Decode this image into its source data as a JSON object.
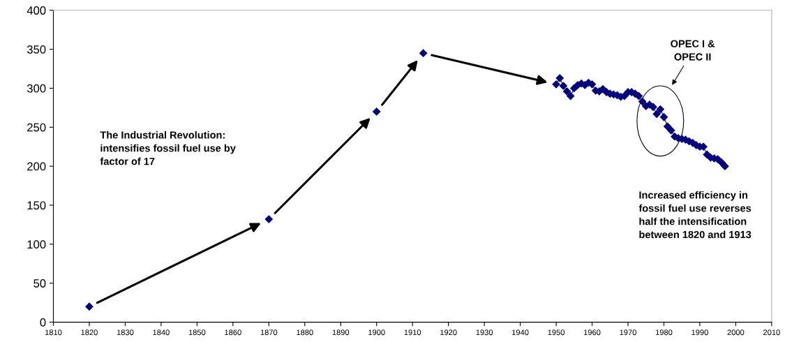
{
  "chart_data": {
    "type": "scatter",
    "marker": "diamond",
    "grid": false,
    "legend": false,
    "xlim": [
      1810,
      2010
    ],
    "xticks": [
      1810,
      1820,
      1830,
      1840,
      1850,
      1860,
      1870,
      1880,
      1890,
      1900,
      1910,
      1920,
      1930,
      1940,
      1950,
      1960,
      1970,
      1980,
      1990,
      2000,
      2010
    ],
    "ylim": [
      0,
      400
    ],
    "yticks": [
      0,
      50,
      100,
      150,
      200,
      250,
      300,
      350,
      400
    ],
    "series": [
      {
        "color": "#000080",
        "x": [
          1820,
          1870,
          1900,
          1913
        ],
        "values": [
          20,
          132,
          270,
          345
        ]
      },
      {
        "type": "line",
        "color": "#000080",
        "x": [
          1950,
          1951,
          1952,
          1953,
          1954,
          1955,
          1956,
          1957,
          1958,
          1959,
          1960,
          1961,
          1962,
          1963,
          1964,
          1965,
          1966,
          1967,
          1968,
          1969,
          1970,
          1971,
          1972,
          1973,
          1974,
          1975,
          1976,
          1977,
          1978,
          1979,
          1980,
          1981,
          1982,
          1983,
          1984,
          1985,
          1986,
          1987,
          1988,
          1989,
          1990,
          1991,
          1992,
          1993,
          1994,
          1995,
          1996,
          1997
        ],
        "values": [
          305,
          313,
          303,
          296,
          290,
          300,
          304,
          306,
          304,
          307,
          305,
          297,
          296,
          299,
          295,
          293,
          292,
          291,
          289,
          290,
          295,
          295,
          293,
          290,
          283,
          277,
          279,
          276,
          267,
          273,
          263,
          251,
          246,
          238,
          236,
          235,
          234,
          232,
          230,
          227,
          225,
          225,
          215,
          211,
          210,
          209,
          205,
          200
        ]
      }
    ],
    "annotations": [
      "The Industrial Revolution: intensifies fossil fuel use by factor of 17",
      "OPEC I & OPEC II",
      "Increased efficiency in fossil fuel use reverses half the intensification between 1820 and 1913"
    ]
  }
}
